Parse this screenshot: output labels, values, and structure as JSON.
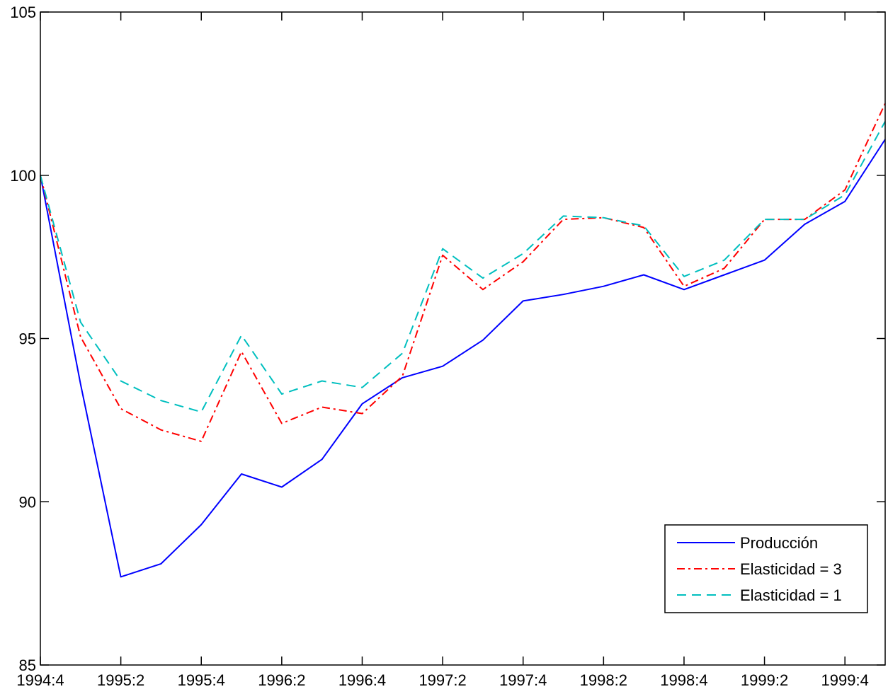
{
  "chart_data": {
    "type": "line",
    "title": "",
    "xlabel": "",
    "ylabel": "",
    "ylim": [
      85,
      105
    ],
    "yticks": [
      "85",
      "90",
      "95",
      "100",
      "105"
    ],
    "xtick_labels": [
      "1994:4",
      "1995:2",
      "1995:4",
      "1996:2",
      "1996:4",
      "1997:2",
      "1997:4",
      "1998:2",
      "1998:4",
      "1999:2",
      "1999:4"
    ],
    "x": [
      "1994:4",
      "1995:1",
      "1995:2",
      "1995:3",
      "1995:4",
      "1996:1",
      "1996:2",
      "1996:3",
      "1996:4",
      "1997:1",
      "1997:2",
      "1997:3",
      "1997:4",
      "1998:1",
      "1998:2",
      "1998:3",
      "1998:4",
      "1999:1",
      "1999:2",
      "1999:3",
      "1999:4",
      "2000:1"
    ],
    "grid": false,
    "legend_position": "bottom-right",
    "series": [
      {
        "name": "Producción",
        "color": "#0000ff",
        "dash": "solid",
        "values": [
          100.0,
          93.6,
          87.7,
          88.1,
          89.3,
          90.85,
          90.45,
          91.3,
          93.0,
          93.8,
          94.15,
          94.95,
          96.15,
          96.35,
          96.6,
          96.95,
          96.5,
          96.95,
          97.4,
          98.5,
          99.2,
          101.1
        ]
      },
      {
        "name": "Elasticidad = 3",
        "color": "#ff0000",
        "dash": "dashdot",
        "values": [
          100.0,
          95.05,
          92.85,
          92.2,
          91.85,
          94.6,
          92.4,
          92.9,
          92.7,
          93.85,
          97.55,
          96.5,
          97.35,
          98.65,
          98.7,
          98.4,
          96.6,
          97.15,
          98.65,
          98.65,
          99.55,
          102.2
        ]
      },
      {
        "name": "Elasticidad = 1",
        "color": "#00bfbf",
        "dash": "dashed",
        "values": [
          100.0,
          95.5,
          93.7,
          93.1,
          92.75,
          95.1,
          93.3,
          93.7,
          93.5,
          94.55,
          97.75,
          96.85,
          97.6,
          98.75,
          98.7,
          98.45,
          96.9,
          97.4,
          98.65,
          98.65,
          99.4,
          101.65
        ]
      }
    ]
  }
}
